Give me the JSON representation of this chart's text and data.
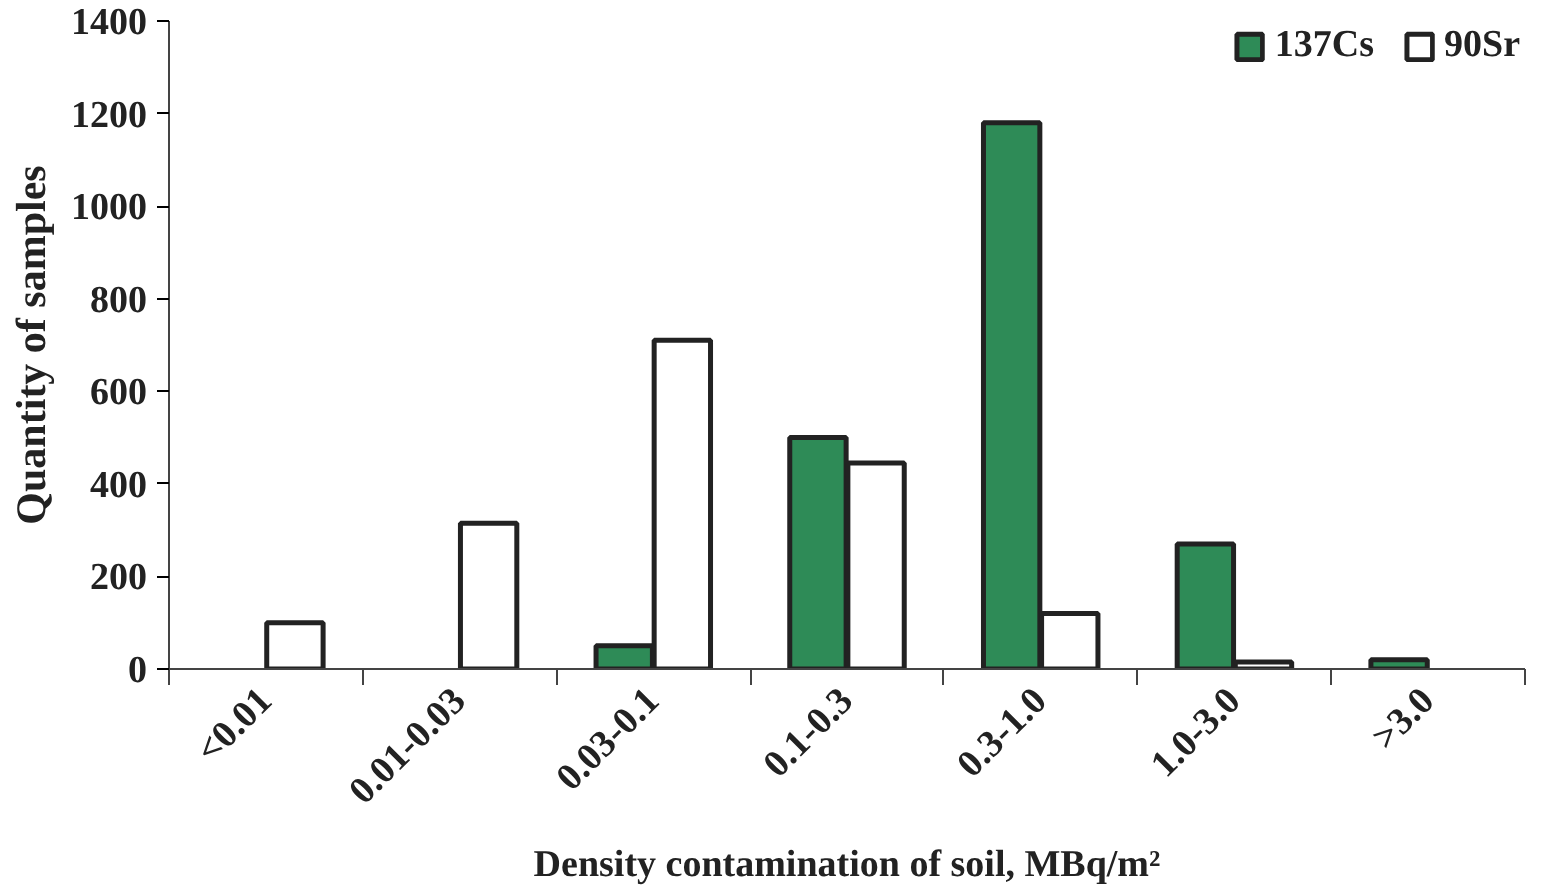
{
  "chart_data": {
    "type": "bar",
    "xlabel": "Density contamination of soil, MBq/m²",
    "ylabel": "Quantity of samples",
    "categories": [
      "<0.01",
      "0.01-0.03",
      "0.03-0.1",
      "0.1-0.3",
      "0.3-1.0",
      "1.0-3.0",
      ">3.0"
    ],
    "series": [
      {
        "name": "137Cs",
        "color": "#2e8b57",
        "values": [
          null,
          null,
          50,
          500,
          1180,
          270,
          20
        ]
      },
      {
        "name": "90Sr",
        "color": "#ffffff",
        "values": [
          100,
          315,
          710,
          445,
          120,
          15,
          null
        ]
      }
    ],
    "ylim": [
      0,
      1400
    ],
    "yticks": [
      0,
      200,
      400,
      600,
      800,
      1000,
      1200,
      1400
    ],
    "grid": false,
    "legend": "top right"
  }
}
